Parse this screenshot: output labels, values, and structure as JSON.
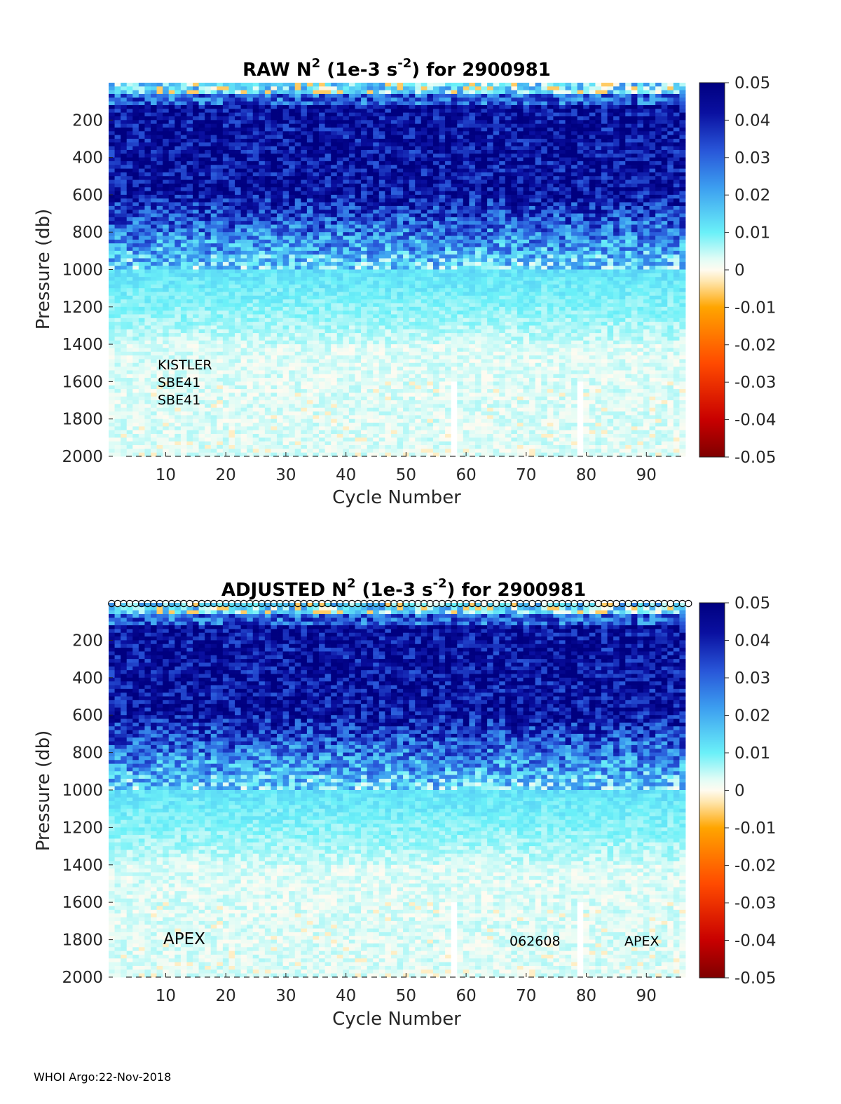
{
  "chart_data": [
    {
      "type": "heatmap",
      "id": "raw",
      "title": {
        "prefix": "RAW N",
        "sup": "2",
        "mid": " (1e-3 s",
        "sup2": "-2",
        "suffix": ") for 2900981"
      },
      "xlabel": "Cycle Number",
      "ylabel": "Pressure (db)",
      "xlim": [
        1,
        96
      ],
      "ylim": [
        2000,
        0
      ],
      "xticks": [
        "10",
        "20",
        "30",
        "40",
        "50",
        "60",
        "70",
        "80",
        "90"
      ],
      "yticks": [
        "200",
        "400",
        "600",
        "800",
        "1000",
        "1200",
        "1400",
        "1600",
        "1800",
        "2000"
      ],
      "colorbar": {
        "ticks": [
          "0.05",
          "0.04",
          "0.03",
          "0.02",
          "0.01",
          "0",
          "-0.01",
          "-0.02",
          "-0.03",
          "-0.04",
          "-0.05"
        ],
        "range": [
          -0.05,
          0.05
        ]
      },
      "annotations": [
        "KISTLER",
        "SBE41",
        "SBE41"
      ],
      "gaps": [
        {
          "cycle": 58,
          "from": 1600,
          "to": 2000
        },
        {
          "cycle": 79,
          "from": 1600,
          "to": 2000
        }
      ],
      "pattern": "N2 high (0.04-0.05) between 100 and 600 db, decreasing to ~0.01 near 1000 db and ~0.002 below 1400 db"
    },
    {
      "type": "heatmap",
      "id": "adjusted",
      "title": {
        "prefix": "ADJUSTED N",
        "sup": "2",
        "mid": " (1e-3 s",
        "sup2": "-2",
        "suffix": ") for 2900981"
      },
      "xlabel": "Cycle Number",
      "ylabel": "Pressure (db)",
      "xlim": [
        1,
        96
      ],
      "ylim": [
        2000,
        0
      ],
      "xticks": [
        "10",
        "20",
        "30",
        "40",
        "50",
        "60",
        "70",
        "80",
        "90"
      ],
      "yticks": [
        "200",
        "400",
        "600",
        "800",
        "1000",
        "1200",
        "1400",
        "1600",
        "1800",
        "2000"
      ],
      "colorbar": {
        "ticks": [
          "0.05",
          "0.04",
          "0.03",
          "0.02",
          "0.01",
          "0",
          "-0.01",
          "-0.02",
          "-0.03",
          "-0.04",
          "-0.05"
        ],
        "range": [
          -0.05,
          0.05
        ]
      },
      "annotations": [
        "APEX",
        "062608",
        "APEX"
      ],
      "gaps": [
        {
          "cycle": 58,
          "from": 1600,
          "to": 2000
        },
        {
          "cycle": 79,
          "from": 1600,
          "to": 2000
        }
      ],
      "pattern": "N2 high (0.04-0.05) between 100 and 600 db, decreasing to ~0.01 near 1000 db and ~0.002 below 1400 db",
      "top_markers": "open circle at every cycle along the top edge"
    }
  ],
  "footer": "WHOI Argo:22-Nov-2018"
}
